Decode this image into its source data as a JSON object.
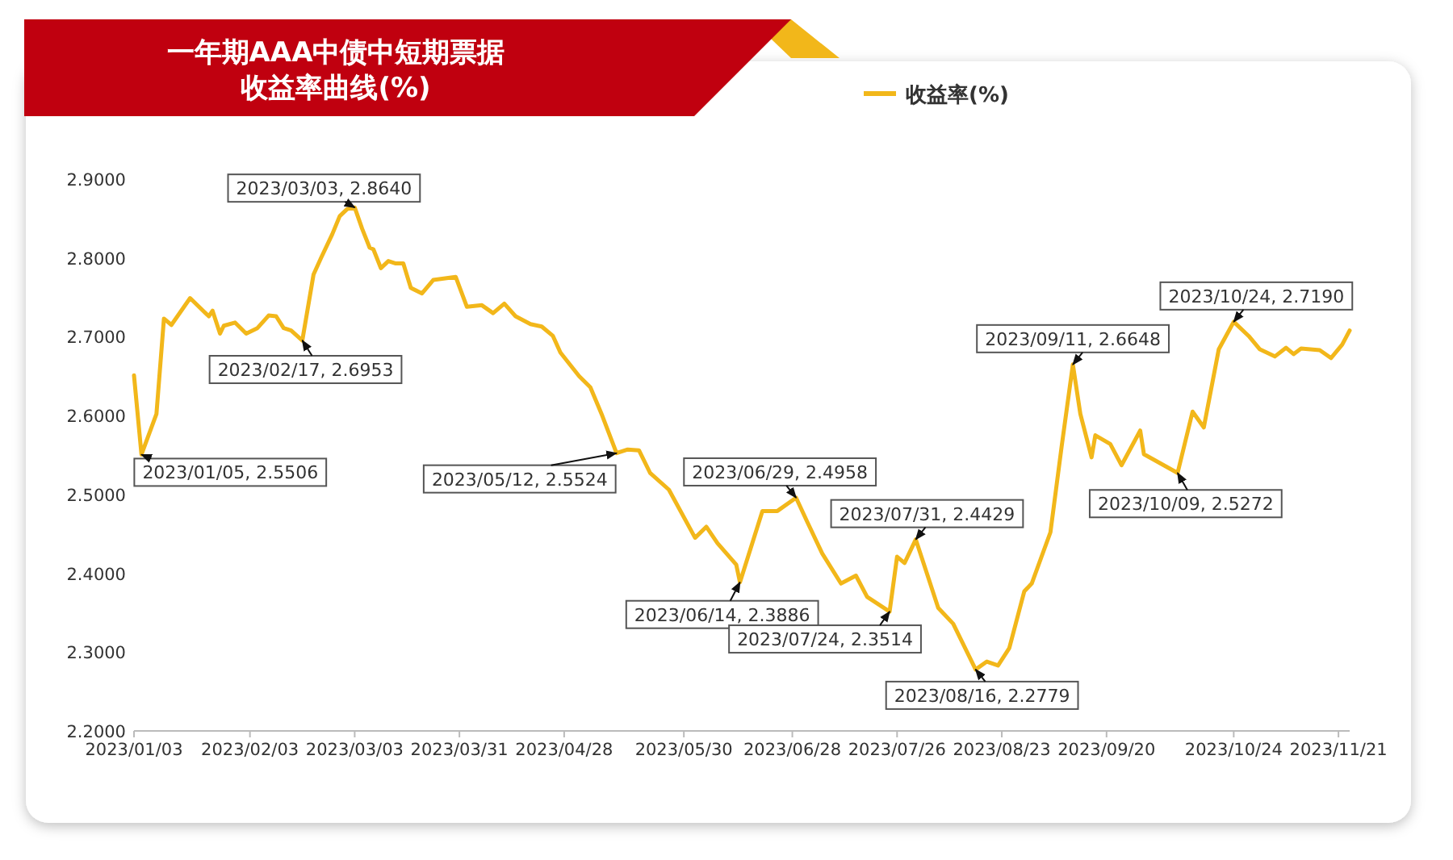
{
  "chart_data": {
    "type": "line",
    "title": "一年期AAA中债中短期票据",
    "subtitle": "收益率曲线(%)",
    "x": [
      "2023-01-03",
      "2023-01-05",
      "2023-01-09",
      "2023-01-11",
      "2023-01-13",
      "2023-01-18",
      "2023-01-23",
      "2023-01-24",
      "2023-01-26",
      "2023-01-27",
      "2023-01-30",
      "2023-02-02",
      "2023-02-05",
      "2023-02-08",
      "2023-02-10",
      "2023-02-12",
      "2023-02-14",
      "2023-02-17",
      "2023-02-20",
      "2023-02-22",
      "2023-02-25",
      "2023-02-27",
      "2023-03-01",
      "2023-03-03",
      "2023-03-05",
      "2023-03-07",
      "2023-03-08",
      "2023-03-10",
      "2023-03-12",
      "2023-03-14",
      "2023-03-16",
      "2023-03-18",
      "2023-03-21",
      "2023-03-24",
      "2023-03-30",
      "2023-04-02",
      "2023-04-06",
      "2023-04-09",
      "2023-04-12",
      "2023-04-15",
      "2023-04-19",
      "2023-04-22",
      "2023-04-25",
      "2023-04-27",
      "2023-05-02",
      "2023-05-05",
      "2023-05-08",
      "2023-05-12",
      "2023-05-15",
      "2023-05-18",
      "2023-05-21",
      "2023-05-26",
      "2023-06-02",
      "2023-06-05",
      "2023-06-08",
      "2023-06-13",
      "2023-06-14",
      "2023-06-20",
      "2023-06-24",
      "2023-06-29",
      "2023-07-02",
      "2023-07-06",
      "2023-07-11",
      "2023-07-15",
      "2023-07-18",
      "2023-07-24",
      "2023-07-26",
      "2023-07-28",
      "2023-07-31",
      "2023-08-06",
      "2023-08-10",
      "2023-08-16",
      "2023-08-19",
      "2023-08-22",
      "2023-08-25",
      "2023-08-29",
      "2023-08-31",
      "2023-09-05",
      "2023-09-08",
      "2023-09-11",
      "2023-09-13",
      "2023-09-16",
      "2023-09-17",
      "2023-09-21",
      "2023-09-24",
      "2023-09-29",
      "2023-09-30",
      "2023-10-09",
      "2023-10-13",
      "2023-10-16",
      "2023-10-20",
      "2023-10-24",
      "2023-10-28",
      "2023-10-31",
      "2023-11-04",
      "2023-11-07",
      "2023-11-09",
      "2023-11-11",
      "2023-11-16",
      "2023-11-19",
      "2023-11-22",
      "2023-11-24"
    ],
    "series": [
      {
        "name": "收益率(%)",
        "color": "#f2b71a",
        "values": [
          2.651,
          2.5506,
          2.602,
          2.723,
          2.715,
          2.749,
          2.726,
          2.733,
          2.704,
          2.714,
          2.718,
          2.704,
          2.711,
          2.727,
          2.726,
          2.711,
          2.708,
          2.6953,
          2.779,
          2.8,
          2.83,
          2.853,
          2.862,
          2.864,
          2.837,
          2.813,
          2.811,
          2.787,
          2.796,
          2.793,
          2.793,
          2.762,
          2.755,
          2.772,
          2.776,
          2.738,
          2.74,
          2.73,
          2.742,
          2.726,
          2.716,
          2.713,
          2.701,
          2.68,
          2.65,
          2.636,
          2.602,
          2.5524,
          2.557,
          2.556,
          2.527,
          2.506,
          2.445,
          2.459,
          2.438,
          2.411,
          2.3886,
          2.479,
          2.479,
          2.4958,
          2.465,
          2.425,
          2.387,
          2.397,
          2.37,
          2.3514,
          2.421,
          2.413,
          2.4429,
          2.356,
          2.336,
          2.2779,
          2.288,
          2.283,
          2.305,
          2.377,
          2.387,
          2.452,
          2.561,
          2.6648,
          2.602,
          2.547,
          2.575,
          2.564,
          2.537,
          2.581,
          2.551,
          2.5272,
          2.605,
          2.585,
          2.684,
          2.719,
          2.701,
          2.684,
          2.675,
          2.686,
          2.678,
          2.685,
          2.683,
          2.673,
          2.69,
          2.708
        ]
      }
    ],
    "xlim": [
      "2023-01-03",
      "2023-11-24"
    ],
    "xticks": [
      {
        "value": "2023-01-03",
        "label": "2023/01/03"
      },
      {
        "value": "2023-02-03",
        "label": "2023/02/03"
      },
      {
        "value": "2023-03-03",
        "label": "2023/03/03"
      },
      {
        "value": "2023-03-31",
        "label": "2023/03/31"
      },
      {
        "value": "2023-04-28",
        "label": "2023/04/28"
      },
      {
        "value": "2023-05-30",
        "label": "2023/05/30"
      },
      {
        "value": "2023-06-28",
        "label": "2023/06/28"
      },
      {
        "value": "2023-07-26",
        "label": "2023/07/26"
      },
      {
        "value": "2023-08-23",
        "label": "2023/08/23"
      },
      {
        "value": "2023-09-20",
        "label": "2023/09/20"
      },
      {
        "value": "2023-10-24",
        "label": "2023/10/24"
      },
      {
        "value": "2023-11-21",
        "label": "2023/11/21"
      }
    ],
    "ylim": [
      2.2,
      2.9
    ],
    "yticks": [
      {
        "value": 2.2,
        "label": "2.2000"
      },
      {
        "value": 2.3,
        "label": "2.3000"
      },
      {
        "value": 2.4,
        "label": "2.4000"
      },
      {
        "value": 2.5,
        "label": "2.5000"
      },
      {
        "value": 2.6,
        "label": "2.6000"
      },
      {
        "value": 2.7,
        "label": "2.7000"
      },
      {
        "value": 2.8,
        "label": "2.8000"
      },
      {
        "value": 2.9,
        "label": "2.9000"
      }
    ],
    "annotations": [
      {
        "text": "2023/01/05, 2.5506",
        "x": "2023-01-05",
        "y": 2.5506
      },
      {
        "text": "2023/02/17, 2.6953",
        "x": "2023-02-17",
        "y": 2.6953
      },
      {
        "text": "2023/03/03, 2.8640",
        "x": "2023-03-03",
        "y": 2.864
      },
      {
        "text": "2023/05/12, 2.5524",
        "x": "2023-05-12",
        "y": 2.5524
      },
      {
        "text": "2023/06/14, 2.3886",
        "x": "2023-06-14",
        "y": 2.3886
      },
      {
        "text": "2023/06/29, 2.4958",
        "x": "2023-06-29",
        "y": 2.4958
      },
      {
        "text": "2023/07/24, 2.3514",
        "x": "2023-07-24",
        "y": 2.3514
      },
      {
        "text": "2023/07/31, 2.4429",
        "x": "2023-07-31",
        "y": 2.4429
      },
      {
        "text": "2023/08/16, 2.2779",
        "x": "2023-08-16",
        "y": 2.2779
      },
      {
        "text": "2023/09/11, 2.6648",
        "x": "2023-09-11",
        "y": 2.6648
      },
      {
        "text": "2023/10/09, 2.5272",
        "x": "2023-10-09",
        "y": 2.5272
      },
      {
        "text": "2023/10/24, 2.7190",
        "x": "2023-10-24",
        "y": 2.719
      }
    ],
    "legend": "top right",
    "grid": false,
    "marker": "none",
    "line_style": "solid"
  }
}
